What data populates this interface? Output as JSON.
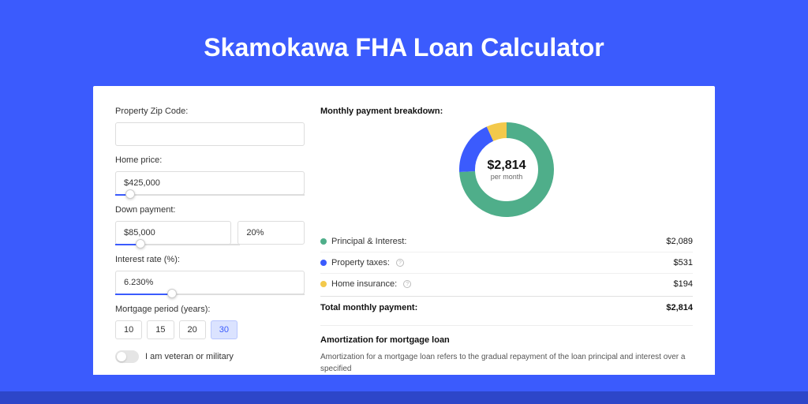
{
  "title": "Skamokawa FHA Loan Calculator",
  "colors": {
    "page_bg": "#3b5bfd",
    "card_bg": "#ffffff",
    "text": "#333333",
    "heading": "#111111",
    "border": "#dddddd",
    "slider_fill": "#3b5bfd",
    "shadow_bar": "#2d46c9"
  },
  "form": {
    "zip": {
      "label": "Property Zip Code:",
      "value": ""
    },
    "home_price": {
      "label": "Home price:",
      "value": "$425,000",
      "slider_pct": 8
    },
    "down_payment": {
      "label": "Down payment:",
      "amount": "$85,000",
      "percent": "20%",
      "slider_pct": 20
    },
    "interest_rate": {
      "label": "Interest rate (%):",
      "value": "6.230%",
      "slider_pct": 30
    },
    "mortgage_period": {
      "label": "Mortgage period (years):",
      "options": [
        "10",
        "15",
        "20",
        "30"
      ],
      "active_index": 3
    },
    "veteran": {
      "label": "I am veteran or military",
      "checked": false
    }
  },
  "breakdown": {
    "header": "Monthly payment breakdown:",
    "donut": {
      "type": "donut",
      "value": "$2,814",
      "sub": "per month",
      "slices": [
        {
          "label": "Principal & Interest",
          "color": "#4fae8a",
          "pct": 74.2
        },
        {
          "label": "Property taxes",
          "color": "#3b5bfd",
          "pct": 18.9
        },
        {
          "label": "Home insurance",
          "color": "#f3c94b",
          "pct": 6.9
        }
      ],
      "thickness": 20,
      "size": 120
    },
    "legend": [
      {
        "label": "Principal & Interest:",
        "color": "#4fae8a",
        "value": "$2,089",
        "info": false
      },
      {
        "label": "Property taxes:",
        "color": "#3b5bfd",
        "value": "$531",
        "info": true
      },
      {
        "label": "Home insurance:",
        "color": "#f3c94b",
        "value": "$194",
        "info": true
      }
    ],
    "total": {
      "label": "Total monthly payment:",
      "value": "$2,814"
    }
  },
  "amortization": {
    "header": "Amortization for mortgage loan",
    "text": "Amortization for a mortgage loan refers to the gradual repayment of the loan principal and interest over a specified"
  }
}
